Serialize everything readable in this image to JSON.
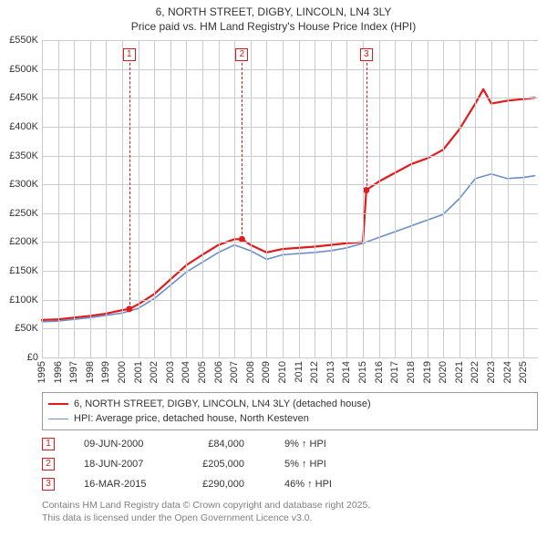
{
  "title": {
    "line1": "6, NORTH STREET, DIGBY, LINCOLN, LN4 3LY",
    "line2": "Price paid vs. HM Land Registry's House Price Index (HPI)",
    "fontsize": 12
  },
  "chart": {
    "type": "line",
    "background_color": "#ffffff",
    "grid_color": "#cccccc",
    "x": {
      "min": 1995,
      "max": 2025.9,
      "ticks": [
        1995,
        1996,
        1997,
        1998,
        1999,
        2000,
        2001,
        2002,
        2003,
        2004,
        2005,
        2006,
        2007,
        2008,
        2009,
        2010,
        2011,
        2012,
        2013,
        2014,
        2015,
        2016,
        2017,
        2018,
        2019,
        2020,
        2021,
        2022,
        2023,
        2024,
        2025
      ],
      "tick_labels": [
        "1995",
        "1996",
        "1997",
        "1998",
        "1999",
        "2000",
        "2001",
        "2002",
        "2003",
        "2004",
        "2005",
        "2006",
        "2007",
        "2008",
        "2009",
        "2010",
        "2011",
        "2012",
        "2013",
        "2014",
        "2015",
        "2016",
        "2017",
        "2018",
        "2019",
        "2020",
        "2021",
        "2022",
        "2023",
        "2024",
        "2025"
      ],
      "label_fontsize": 11
    },
    "y": {
      "min": 0,
      "max": 550000,
      "ticks": [
        0,
        50000,
        100000,
        150000,
        200000,
        250000,
        300000,
        350000,
        400000,
        450000,
        500000,
        550000
      ],
      "tick_labels": [
        "£0",
        "£50K",
        "£100K",
        "£150K",
        "£200K",
        "£250K",
        "£300K",
        "£350K",
        "£400K",
        "£450K",
        "£500K",
        "£550K"
      ],
      "label_fontsize": 11
    },
    "series": [
      {
        "name": "price_paid",
        "color": "#e31a1c",
        "line_width": 2.2,
        "x": [
          1995,
          1996,
          1997,
          1998,
          1999,
          2000,
          2000.44,
          2001,
          2002,
          2003,
          2004,
          2005,
          2006,
          2007,
          2007.46,
          2008,
          2009,
          2010,
          2011,
          2012,
          2013,
          2014,
          2015,
          2015.21,
          2016,
          2017,
          2018,
          2019,
          2020,
          2021,
          2022,
          2022.5,
          2023,
          2024,
          2025,
          2025.7
        ],
        "y": [
          65000,
          66000,
          69000,
          72000,
          76000,
          82000,
          84000,
          92000,
          110000,
          135000,
          160000,
          178000,
          195000,
          205000,
          205000,
          195000,
          182000,
          188000,
          190000,
          192000,
          195000,
          198000,
          200000,
          290000,
          305000,
          320000,
          335000,
          345000,
          360000,
          395000,
          440000,
          465000,
          440000,
          445000,
          448000,
          450000
        ]
      },
      {
        "name": "hpi",
        "color": "#6a8fc8",
        "line_width": 1.6,
        "x": [
          1995,
          1996,
          1997,
          1998,
          1999,
          2000,
          2001,
          2002,
          2003,
          2004,
          2005,
          2006,
          2007,
          2008,
          2009,
          2010,
          2011,
          2012,
          2013,
          2014,
          2015,
          2016,
          2017,
          2018,
          2019,
          2020,
          2021,
          2022,
          2023,
          2024,
          2025,
          2025.7
        ],
        "y": [
          62000,
          63000,
          66000,
          69000,
          73000,
          77000,
          85000,
          102000,
          125000,
          148000,
          165000,
          182000,
          195000,
          185000,
          170000,
          178000,
          180000,
          182000,
          185000,
          190000,
          198000,
          208000,
          218000,
          228000,
          238000,
          248000,
          275000,
          310000,
          318000,
          310000,
          312000,
          315000
        ]
      }
    ],
    "markers": [
      {
        "n": "1",
        "x": 2000.44,
        "y": 84000,
        "vline_ymax": 510000,
        "box_y": 525000,
        "color": "#e31a1c"
      },
      {
        "n": "2",
        "x": 2007.46,
        "y": 205000,
        "vline_ymax": 510000,
        "box_y": 525000,
        "color": "#e31a1c"
      },
      {
        "n": "3",
        "x": 2015.21,
        "y": 290000,
        "vline_ymax": 510000,
        "box_y": 525000,
        "color": "#e31a1c"
      }
    ]
  },
  "legend": {
    "items": [
      {
        "label": "6, NORTH STREET, DIGBY, LINCOLN, LN4 3LY (detached house)",
        "color": "#e31a1c",
        "line_width": 2.2
      },
      {
        "label": "HPI: Average price, detached house, North Kesteven",
        "color": "#6a8fc8",
        "line_width": 1.6
      }
    ],
    "fontsize": 11
  },
  "events": [
    {
      "n": "1",
      "date": "09-JUN-2000",
      "price": "£84,000",
      "pct": "9% ↑ HPI",
      "color": "#e31a1c"
    },
    {
      "n": "2",
      "date": "18-JUN-2007",
      "price": "£205,000",
      "pct": "5% ↑ HPI",
      "color": "#e31a1c"
    },
    {
      "n": "3",
      "date": "16-MAR-2015",
      "price": "£290,000",
      "pct": "46% ↑ HPI",
      "color": "#e31a1c"
    }
  ],
  "footer": {
    "line1": "Contains HM Land Registry data © Crown copyright and database right 2025.",
    "line2": "This data is licensed under the Open Government Licence v3.0.",
    "color": "#808080",
    "fontsize": 10.5
  }
}
